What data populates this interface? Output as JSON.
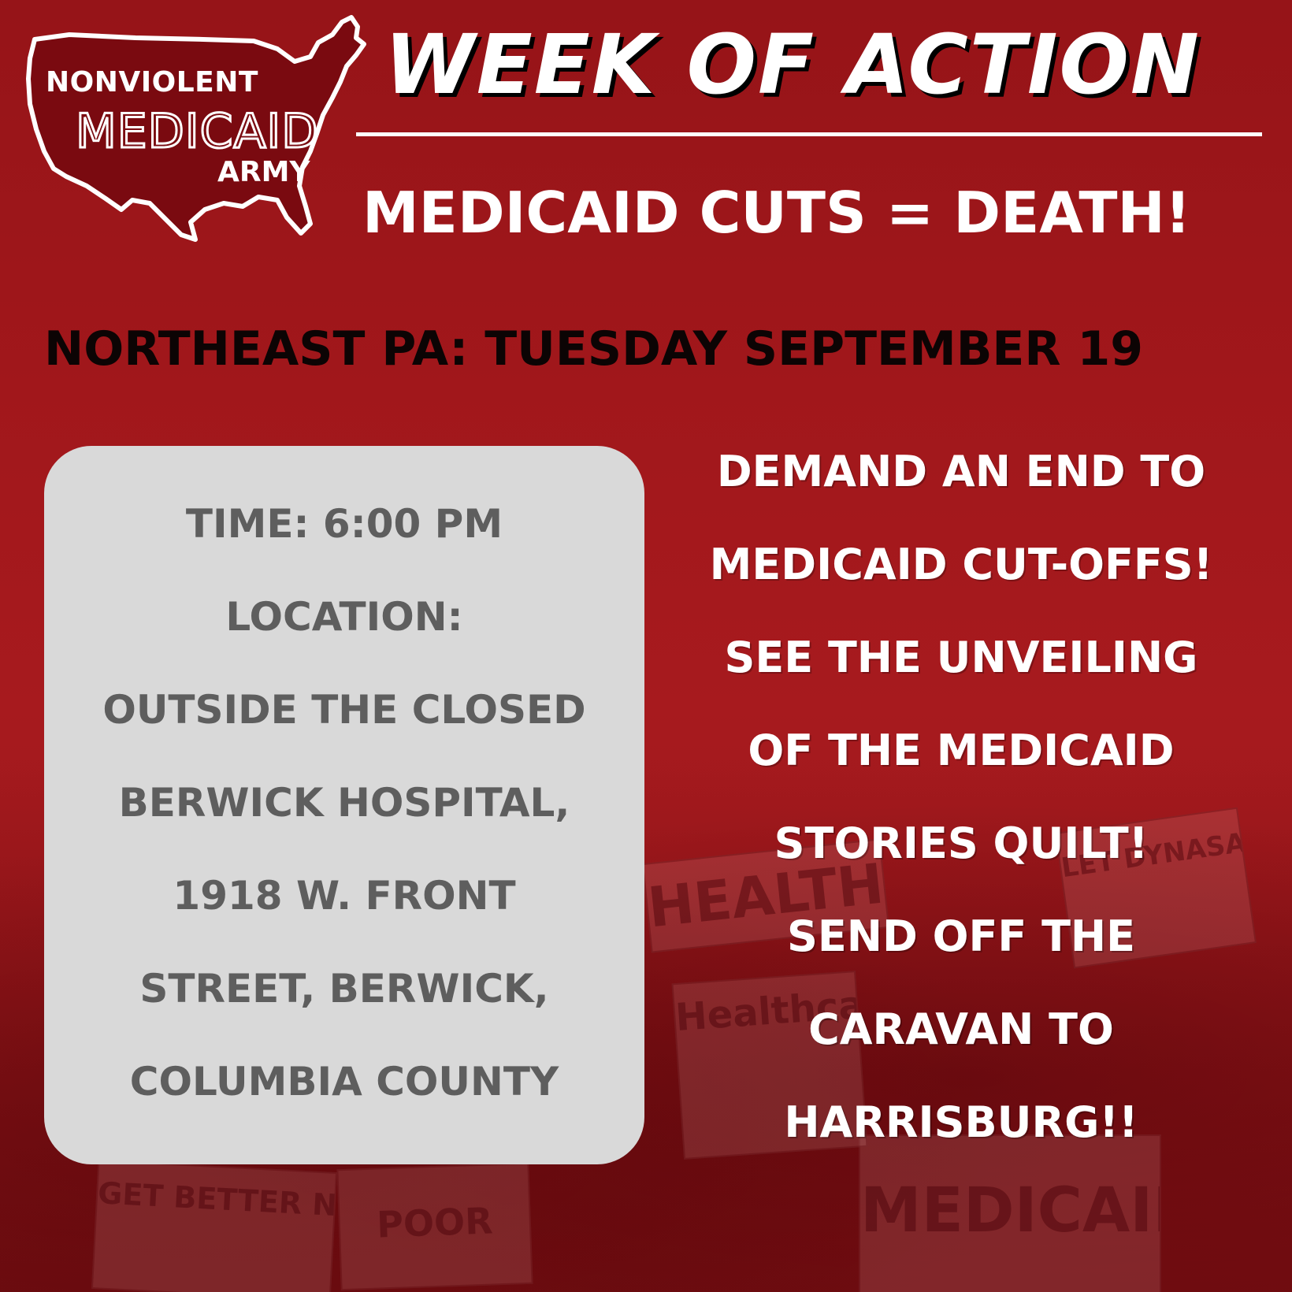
{
  "logo": {
    "line1": "NONVIOLENT",
    "line2": "MEDICAID",
    "line3": "ARMY",
    "shape_icon": "usa-map-icon",
    "fill_color": "#7a0a10",
    "outline_color": "#ffffff"
  },
  "header": {
    "title": "WEEK OF ACTION",
    "slogan": "MEDICAID CUTS = DEATH!"
  },
  "event": {
    "date_line": "NORTHEAST PA: TUESDAY SEPTEMBER 19"
  },
  "details": {
    "lines": [
      "TIME: 6:00 PM",
      "LOCATION:",
      "OUTSIDE THE CLOSED",
      "BERWICK HOSPITAL,",
      "1918 W. FRONT",
      "STREET, BERWICK,",
      "COLUMBIA COUNTY"
    ]
  },
  "actions": {
    "lines": [
      "DEMAND AN END TO",
      "MEDICAID CUT-OFFS!",
      "SEE THE UNVEILING",
      "OF THE MEDICAID",
      "STORIES QUILT!",
      "SEND OFF THE",
      "CARAVAN TO",
      "HARRISBURG!!"
    ]
  },
  "background_signs": {
    "sign1": "GET BETTER NOT DEBT!",
    "sign2": "POOR",
    "sign3": "HEALTHCARE",
    "sign4": "MEDICAID",
    "sign5": "LET DYNASAUR GO EXTINCT",
    "sign6": "Healthcare NOT Wealthcare"
  },
  "colors": {
    "background": "#a1171b",
    "card": "#d9d9d9",
    "card_text": "#5e5e5e",
    "date_text": "#0c0404",
    "accent_text": "#ffffff"
  }
}
